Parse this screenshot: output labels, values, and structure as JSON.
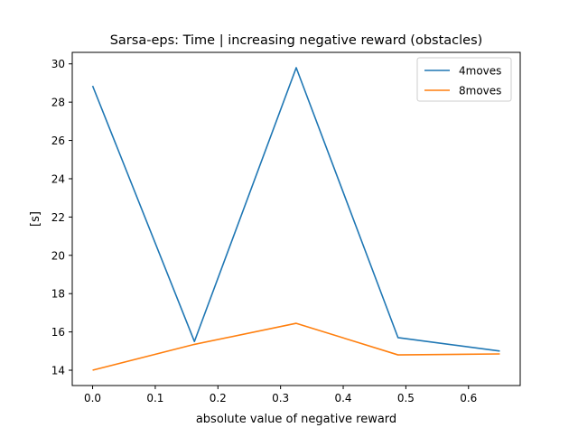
{
  "chart_data": {
    "type": "line",
    "title": "Sarsa-eps: Time | increasing negative reward (obstacles)",
    "xlabel": "absolute value of negative reward",
    "ylabel": "[s]",
    "xlim": [
      -0.0325,
      0.6825
    ],
    "ylim": [
      13.2,
      30.6
    ],
    "xticks": [
      0.0,
      0.1,
      0.2,
      0.3,
      0.4,
      0.5,
      0.6
    ],
    "xtick_labels": [
      "0.0",
      "0.1",
      "0.2",
      "0.3",
      "0.4",
      "0.5",
      "0.6"
    ],
    "yticks": [
      14,
      16,
      18,
      20,
      22,
      24,
      26,
      28,
      30
    ],
    "ytick_labels": [
      "14",
      "16",
      "18",
      "20",
      "22",
      "24",
      "26",
      "28",
      "30"
    ],
    "grid": false,
    "legend_position": "upper right",
    "series": [
      {
        "name": "4moves",
        "color": "#1f77b4",
        "x": [
          0.0,
          0.1625,
          0.325,
          0.4875,
          0.65
        ],
        "y": [
          28.85,
          15.5,
          29.8,
          15.7,
          15.0
        ]
      },
      {
        "name": "8moves",
        "color": "#ff7f0e",
        "x": [
          0.0,
          0.1625,
          0.325,
          0.4875,
          0.65
        ],
        "y": [
          14.0,
          15.35,
          16.45,
          14.8,
          14.85
        ]
      }
    ]
  }
}
